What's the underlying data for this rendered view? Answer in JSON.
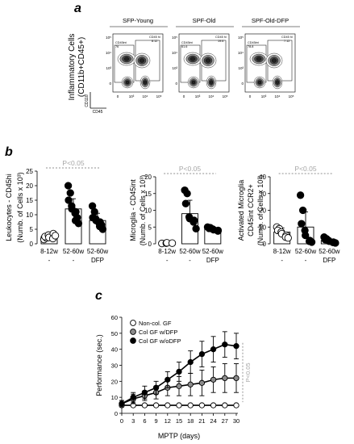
{
  "panels": {
    "a": {
      "letter": "a",
      "ylabel_1": "Inflammatory Cells",
      "ylabel_2": "(CD11b+CD45+)",
      "axis_y": "CD11b",
      "axis_x": "CD45",
      "x_ticks": [
        "0",
        "10³",
        "10⁴",
        "10⁵"
      ],
      "y_ticks": [
        "10⁵",
        "10⁴",
        "10³",
        "0"
      ],
      "facs": [
        {
          "title": "SFP-Young",
          "gate_low": "CD45int",
          "val_low": "76",
          "gate_high": "CD45 hi",
          "val_high": "8.12"
        },
        {
          "title": "SPF-Old",
          "gate_low": "CD45int",
          "val_low": "61.6",
          "gate_high": "CD45 hi",
          "val_high": "19.6"
        },
        {
          "title": "SPF-Old-DFP",
          "gate_low": "CD45int",
          "val_low": "78.8",
          "gate_high": "CD45 hi",
          "val_high": "7.12"
        }
      ]
    },
    "b": {
      "letter": "b"
    },
    "c": {
      "letter": "c"
    }
  },
  "chart_data": [
    {
      "type": "scatter",
      "panel": "b",
      "ylabel_1": "Leukocytes - CD45hi",
      "ylabel_2": "(Numb. of Cells x 10³)",
      "ylim": [
        0,
        25
      ],
      "yticks": [
        "0",
        "5",
        "10",
        "15",
        "20",
        "25"
      ],
      "significance": "P<0.05",
      "groups": [
        {
          "label": "8-12w",
          "sub": "-",
          "marker": "open-circle",
          "mean": 2.5,
          "sd": 0.8,
          "points": [
            1.5,
            2.0,
            2.5,
            3.0,
            2.2,
            3.5,
            1.8,
            2.8
          ]
        },
        {
          "label": "52-60w",
          "sub": "-",
          "marker": "black-circle",
          "mean": 12.0,
          "sd": 3.5,
          "points": [
            20,
            17.5,
            15,
            13,
            12,
            11,
            10.5,
            9,
            8,
            7
          ]
        },
        {
          "label": "52-60w",
          "sub": "DFP",
          "marker": "black-circle",
          "mean": 8.0,
          "sd": 2.5,
          "points": [
            13,
            11,
            9,
            8.5,
            8,
            7.5,
            7,
            6.5,
            6,
            5
          ]
        }
      ]
    },
    {
      "type": "scatter",
      "panel": "b",
      "ylabel_1": "Microglia - CD45int",
      "ylabel_2": "(Numb. of Cells x 10³)",
      "ylim": [
        0,
        20
      ],
      "yticks": [
        "0",
        "5",
        "10",
        "15",
        "20"
      ],
      "significance": "P<0.05",
      "groups": [
        {
          "label": "8-12w",
          "sub": "-",
          "marker": "open-circle",
          "mean": 0.2,
          "sd": 0.1,
          "points": [
            0.1,
            0.2,
            0.3,
            0.2
          ]
        },
        {
          "label": "52-60w",
          "sub": "-",
          "marker": "black-circle",
          "mean": 9.0,
          "sd": 4.0,
          "points": [
            16,
            15,
            12,
            8,
            7.5,
            7,
            6.5,
            4.5
          ]
        },
        {
          "label": "52-60w",
          "sub": "DFP",
          "marker": "black-circle",
          "mean": 4.5,
          "sd": 0.6,
          "points": [
            5,
            4.8,
            4.6,
            4.4,
            4.2,
            4.0,
            3.8
          ]
        }
      ]
    },
    {
      "type": "scatter",
      "panel": "b",
      "ylabel_1": "Activated Microglia",
      "ylabel_2": "CD45int CCR2+",
      "ylabel_3": "(Numb. of Cells x 10³)",
      "ylim": [
        0,
        40
      ],
      "yticks": [
        "0",
        "10",
        "20",
        "30",
        "40"
      ],
      "significance": "P<0.05",
      "groups": [
        {
          "label": "8-12w",
          "sub": "-",
          "marker": "open-circle",
          "mean": 7.0,
          "sd": 2.5,
          "points": [
            10,
            9,
            8,
            7,
            6,
            5,
            4,
            3.5
          ]
        },
        {
          "label": "52-60w",
          "sub": "-",
          "marker": "black-circle",
          "mean": 10.0,
          "sd": 9.0,
          "points": [
            29,
            20,
            12,
            8,
            5,
            2,
            1.5,
            1
          ]
        },
        {
          "label": "52-60w",
          "sub": "DFP",
          "marker": "black-circle",
          "mean": 2.0,
          "sd": 1.0,
          "points": [
            4,
            3,
            2.5,
            2,
            1.5,
            1,
            0.8,
            0.5
          ]
        }
      ]
    },
    {
      "type": "line",
      "panel": "c",
      "xlabel": "MPTP (days)",
      "ylabel": "Performance (sec.)",
      "xlim": [
        0,
        30
      ],
      "ylim": [
        0,
        60
      ],
      "x": [
        0,
        3,
        6,
        9,
        12,
        15,
        18,
        21,
        24,
        27,
        30
      ],
      "xticks": [
        "0",
        "3",
        "6",
        "9",
        "12",
        "15",
        "18",
        "21",
        "24",
        "27",
        "30"
      ],
      "yticks": [
        "0",
        "10",
        "20",
        "30",
        "40",
        "50",
        "60"
      ],
      "significance": "P<0.05",
      "legend_position": "top-left",
      "series": [
        {
          "name": "Non-col. GF",
          "marker": "open-circle",
          "values": [
            5,
            5,
            5,
            5,
            5,
            5,
            5,
            5,
            5,
            5,
            5
          ],
          "err": [
            0.5,
            0.5,
            0.5,
            0.5,
            0.5,
            0.5,
            0.5,
            0.5,
            0.5,
            0.5,
            0.5
          ]
        },
        {
          "name": "Col GF w/DFP",
          "marker": "grey-circle",
          "values": [
            6,
            9,
            11,
            13,
            16,
            17,
            18,
            19,
            21,
            22,
            22
          ],
          "err": [
            2,
            3,
            3,
            4,
            5,
            6,
            7,
            8,
            8,
            9,
            9
          ]
        },
        {
          "name": "Col GF w/oDFP",
          "marker": "black-circle",
          "values": [
            6,
            10,
            13,
            16,
            21,
            26,
            32,
            37,
            40,
            43,
            42
          ],
          "err": [
            2,
            3,
            4,
            4,
            5,
            6,
            7,
            8,
            8,
            8,
            8
          ]
        }
      ]
    }
  ],
  "colors": {
    "grey_marker": "#8c8c8c",
    "sig_line": "#a6a6a6",
    "facs_dark": "#222222"
  }
}
